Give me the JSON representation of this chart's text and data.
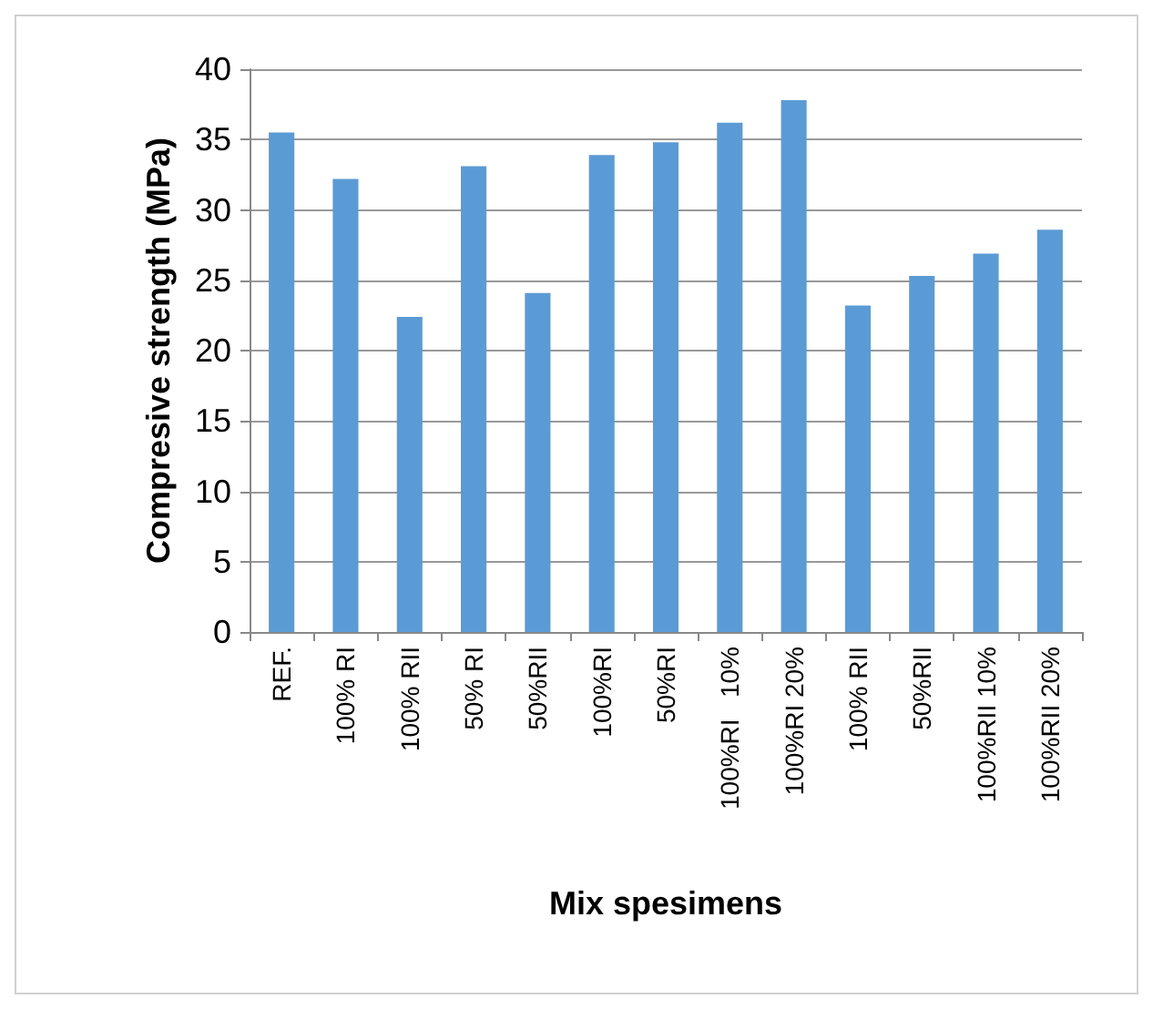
{
  "chart_data": {
    "type": "bar",
    "xlabel": "Mix spesimens",
    "ylabel": "Compresive strength (MPa)",
    "categories": [
      "REF.",
      "100% RI",
      "100% RII",
      "50% RI",
      "50%RII",
      "100%RI",
      "50%RI",
      "100%RI   10%",
      "100%RI 20%",
      "100% RII",
      "50%RII",
      "100%RII 10%",
      "100%RII 20%"
    ],
    "values": [
      35.5,
      32.2,
      22.4,
      33.1,
      24.1,
      33.9,
      34.8,
      36.2,
      37.8,
      23.2,
      25.3,
      26.9,
      28.6
    ],
    "color": "#5b9bd5",
    "ylim": [
      0,
      40
    ],
    "yticks": [
      0,
      5,
      10,
      15,
      20,
      25,
      30,
      35,
      40
    ],
    "grid": "y"
  }
}
